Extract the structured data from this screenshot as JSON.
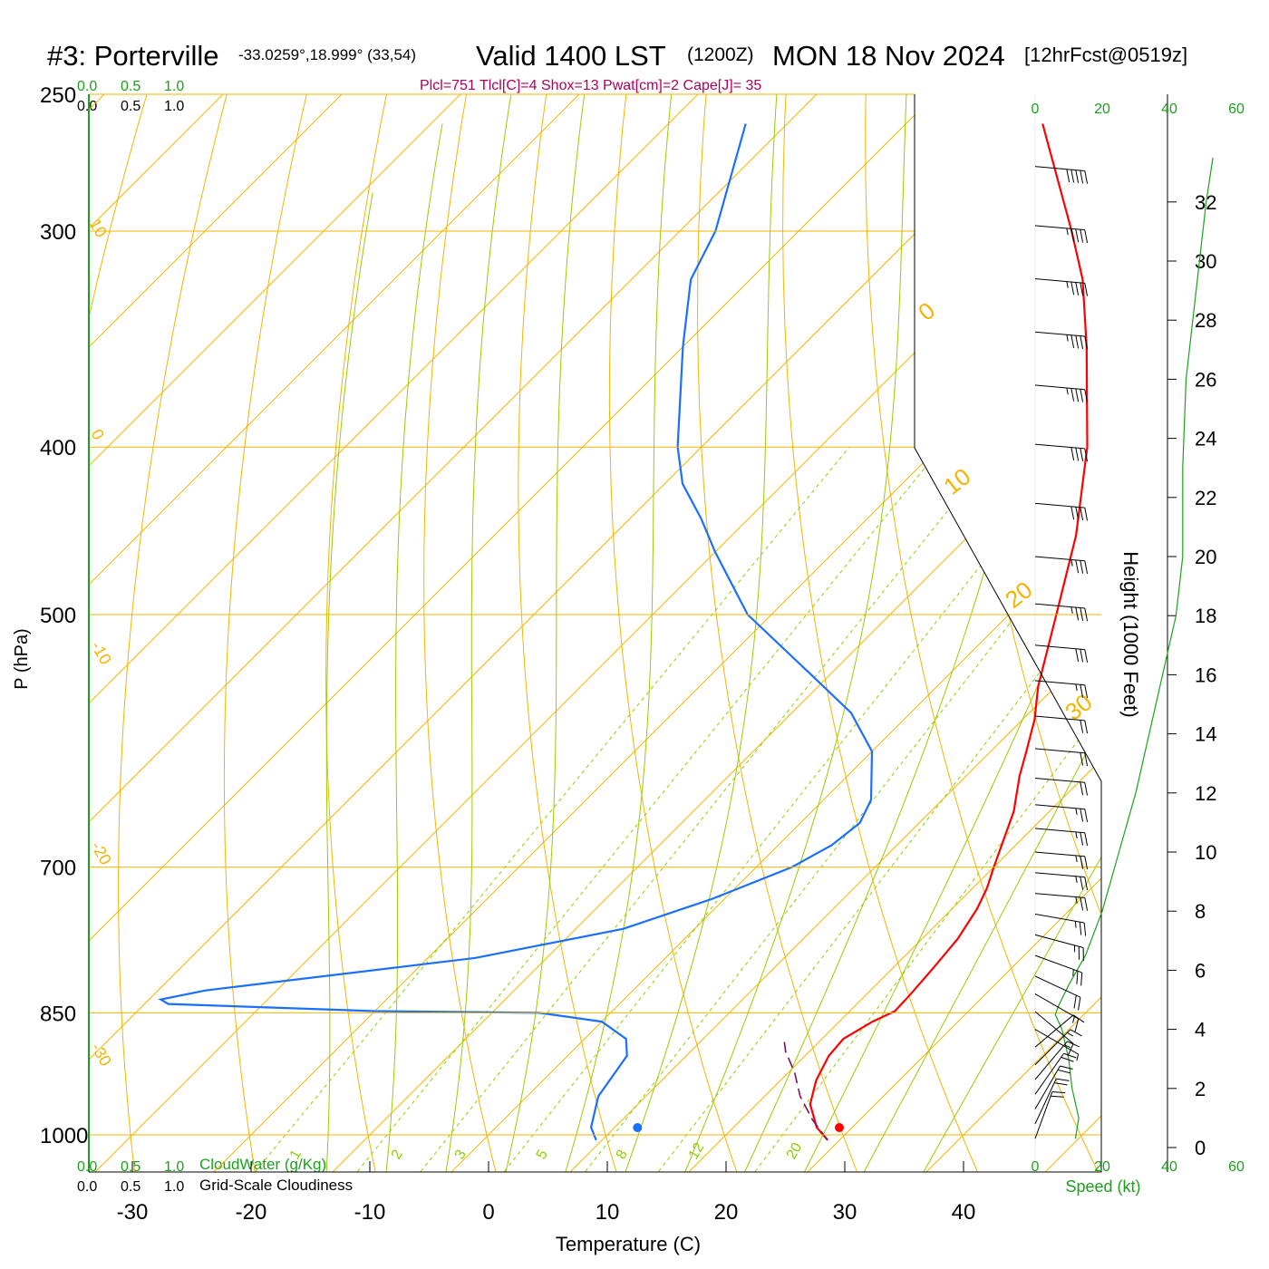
{
  "header": {
    "station": "#3: Porterville",
    "coords": "-33.0259°,18.999° (33,54)",
    "valid": "Valid 1400 LST",
    "utc": "(1200Z)",
    "date": "MON 18 Nov 2024",
    "forecast": "[12hrFcst@0519z]",
    "indices": "Plcl=751 Tlcl[C]=4 Shox=13 Pwat[cm]=2 Cape[J]= 35"
  },
  "axes": {
    "ylabel": "P (hPa)",
    "xlabel": "Temperature (C)",
    "height_label": "Height (1000 Feet)",
    "speed_label": "Speed (kt)",
    "cloudwater_label": "CloudWater (g/Kg)",
    "cloudiness_label": "Grid-Scale Cloudiness",
    "cloud_ticks": [
      "0.0",
      "0.5",
      "1.0"
    ]
  },
  "colors": {
    "temperature": "#ff0000",
    "dewpoint": "#1a6fff",
    "isotherm": "#f5b400",
    "dry_adiabat": "#f5b400",
    "moist_adiabat": "#99cc00",
    "mixing_ratio": "#8cd000",
    "parcel": "#7a0f6b",
    "speed": "#1aa31a",
    "barb": "#000000"
  },
  "chart_data": {
    "type": "skew-t",
    "pressure_levels": [
      1000,
      850,
      700,
      500,
      400,
      300,
      250
    ],
    "pressure_labels": [
      "250",
      "300",
      "400",
      "500",
      "700",
      "850",
      "1000"
    ],
    "xticks": [
      -30,
      -20,
      -10,
      0,
      10,
      20,
      30,
      40
    ],
    "xlim": [
      -30,
      45
    ],
    "plim": [
      1060,
      250
    ],
    "dry_adiabat_labels": [
      "10",
      "0",
      "-10",
      "-20",
      "-30",
      "0",
      "10",
      "20",
      "30"
    ],
    "mixing_ratio_labels": [
      "1",
      "2",
      "3",
      "5",
      "8",
      "12",
      "20"
    ],
    "temperature": [
      {
        "p": 1007,
        "t": 29.0
      },
      {
        "p": 990,
        "t": 27.0
      },
      {
        "p": 960,
        "t": 24.5
      },
      {
        "p": 930,
        "t": 23.0
      },
      {
        "p": 900,
        "t": 22.0
      },
      {
        "p": 880,
        "t": 21.8
      },
      {
        "p": 860,
        "t": 22.8
      },
      {
        "p": 848,
        "t": 23.8
      },
      {
        "p": 830,
        "t": 23.7
      },
      {
        "p": 800,
        "t": 23.4
      },
      {
        "p": 770,
        "t": 23.0
      },
      {
        "p": 740,
        "t": 22.1
      },
      {
        "p": 720,
        "t": 21.2
      },
      {
        "p": 700,
        "t": 20.0
      },
      {
        "p": 650,
        "t": 17.0
      },
      {
        "p": 620,
        "t": 14.5
      },
      {
        "p": 600,
        "t": 13.0
      },
      {
        "p": 575,
        "t": 11.0
      },
      {
        "p": 550,
        "t": 8.5
      },
      {
        "p": 500,
        "t": 4.0
      },
      {
        "p": 450,
        "t": -1.0
      },
      {
        "p": 400,
        "t": -7.5
      },
      {
        "p": 350,
        "t": -16.0
      },
      {
        "p": 320,
        "t": -22.0
      },
      {
        "p": 300,
        "t": -27.0
      },
      {
        "p": 260,
        "t": -38.5
      }
    ],
    "dewpoint": [
      {
        "p": 1007,
        "t": 9.5
      },
      {
        "p": 990,
        "t": 8.0
      },
      {
        "p": 950,
        "t": 6.0
      },
      {
        "p": 900,
        "t": 5.0
      },
      {
        "p": 880,
        "t": 3.5
      },
      {
        "p": 860,
        "t": 0.0
      },
      {
        "p": 850,
        "t": -6.0
      },
      {
        "p": 848,
        "t": -20.0
      },
      {
        "p": 840,
        "t": -38.0
      },
      {
        "p": 835,
        "t": -39.0
      },
      {
        "p": 825,
        "t": -36.0
      },
      {
        "p": 790,
        "t": -16.0
      },
      {
        "p": 760,
        "t": -6.0
      },
      {
        "p": 730,
        "t": -1.0
      },
      {
        "p": 700,
        "t": 3.0
      },
      {
        "p": 680,
        "t": 4.5
      },
      {
        "p": 660,
        "t": 5.0
      },
      {
        "p": 640,
        "t": 4.0
      },
      {
        "p": 600,
        "t": 0.0
      },
      {
        "p": 570,
        "t": -5.0
      },
      {
        "p": 540,
        "t": -12.0
      },
      {
        "p": 500,
        "t": -22.0
      },
      {
        "p": 460,
        "t": -30.0
      },
      {
        "p": 440,
        "t": -34.0
      },
      {
        "p": 420,
        "t": -38.5
      },
      {
        "p": 400,
        "t": -42.0
      },
      {
        "p": 350,
        "t": -50.0
      },
      {
        "p": 320,
        "t": -55.0
      },
      {
        "p": 300,
        "t": -57.0
      },
      {
        "p": 260,
        "t": -63.5
      }
    ],
    "parcel": [
      {
        "p": 1007,
        "t": 29.0
      },
      {
        "p": 980,
        "t": 26.0
      },
      {
        "p": 950,
        "t": 23.0
      },
      {
        "p": 920,
        "t": 20.5
      },
      {
        "p": 895,
        "t": 18.0
      },
      {
        "p": 880,
        "t": 16.8
      }
    ],
    "surface_temperature": 30,
    "surface_dewpoint": 13,
    "wind_profile": [
      {
        "h": 0.3,
        "dir": 200,
        "spd": 20
      },
      {
        "h": 0.8,
        "dir": 205,
        "spd": 20
      },
      {
        "h": 1.3,
        "dir": 210,
        "spd": 20
      },
      {
        "h": 1.8,
        "dir": 215,
        "spd": 20
      },
      {
        "h": 2.3,
        "dir": 220,
        "spd": 15
      },
      {
        "h": 2.8,
        "dir": 225,
        "spd": 15
      },
      {
        "h": 3.4,
        "dir": 230,
        "spd": 10
      },
      {
        "h": 4.0,
        "dir": 300,
        "spd": 5
      },
      {
        "h": 4.6,
        "dir": 310,
        "spd": 10
      },
      {
        "h": 5.2,
        "dir": 300,
        "spd": 15
      },
      {
        "h": 5.8,
        "dir": 295,
        "spd": 20
      },
      {
        "h": 6.5,
        "dir": 290,
        "spd": 25
      },
      {
        "h": 7.2,
        "dir": 285,
        "spd": 25
      },
      {
        "h": 7.9,
        "dir": 280,
        "spd": 25
      },
      {
        "h": 8.6,
        "dir": 275,
        "spd": 25
      },
      {
        "h": 9.3,
        "dir": 275,
        "spd": 25
      },
      {
        "h": 10.0,
        "dir": 275,
        "spd": 25
      },
      {
        "h": 10.8,
        "dir": 275,
        "spd": 25
      },
      {
        "h": 11.6,
        "dir": 275,
        "spd": 25
      },
      {
        "h": 12.5,
        "dir": 275,
        "spd": 20
      },
      {
        "h": 13.5,
        "dir": 275,
        "spd": 20
      },
      {
        "h": 14.6,
        "dir": 275,
        "spd": 20
      },
      {
        "h": 15.8,
        "dir": 275,
        "spd": 25
      },
      {
        "h": 17.0,
        "dir": 275,
        "spd": 30
      },
      {
        "h": 18.4,
        "dir": 275,
        "spd": 35
      },
      {
        "h": 20.0,
        "dir": 275,
        "spd": 35
      },
      {
        "h": 21.8,
        "dir": 275,
        "spd": 40
      },
      {
        "h": 23.8,
        "dir": 275,
        "spd": 40
      },
      {
        "h": 25.8,
        "dir": 275,
        "spd": 45
      },
      {
        "h": 27.6,
        "dir": 275,
        "spd": 45
      },
      {
        "h": 29.4,
        "dir": 275,
        "spd": 45
      },
      {
        "h": 31.2,
        "dir": 275,
        "spd": 45
      },
      {
        "h": 33.2,
        "dir": 275,
        "spd": 50
      }
    ],
    "speed_profile": [
      {
        "h": 0.3,
        "spd": 12
      },
      {
        "h": 1.0,
        "spd": 13
      },
      {
        "h": 2.0,
        "spd": 11
      },
      {
        "h": 3.0,
        "spd": 10
      },
      {
        "h": 4.0,
        "spd": 8
      },
      {
        "h": 4.5,
        "spd": 6
      },
      {
        "h": 4.8,
        "spd": 7
      },
      {
        "h": 5.5,
        "spd": 10
      },
      {
        "h": 6.5,
        "spd": 15
      },
      {
        "h": 8.0,
        "spd": 20
      },
      {
        "h": 10.0,
        "spd": 25
      },
      {
        "h": 12.0,
        "spd": 30
      },
      {
        "h": 14.0,
        "spd": 34
      },
      {
        "h": 16.0,
        "spd": 38
      },
      {
        "h": 18.0,
        "spd": 42
      },
      {
        "h": 20.0,
        "spd": 44
      },
      {
        "h": 23.0,
        "spd": 44
      },
      {
        "h": 26.0,
        "spd": 45
      },
      {
        "h": 28.0,
        "spd": 47
      },
      {
        "h": 30.0,
        "spd": 49
      },
      {
        "h": 32.0,
        "spd": 51
      },
      {
        "h": 33.5,
        "spd": 53
      }
    ],
    "height_ticks": [
      0,
      2,
      4,
      6,
      8,
      10,
      12,
      14,
      16,
      18,
      20,
      22,
      24,
      26,
      28,
      30,
      32
    ],
    "speed_ticks": [
      0,
      20,
      40,
      60
    ]
  }
}
